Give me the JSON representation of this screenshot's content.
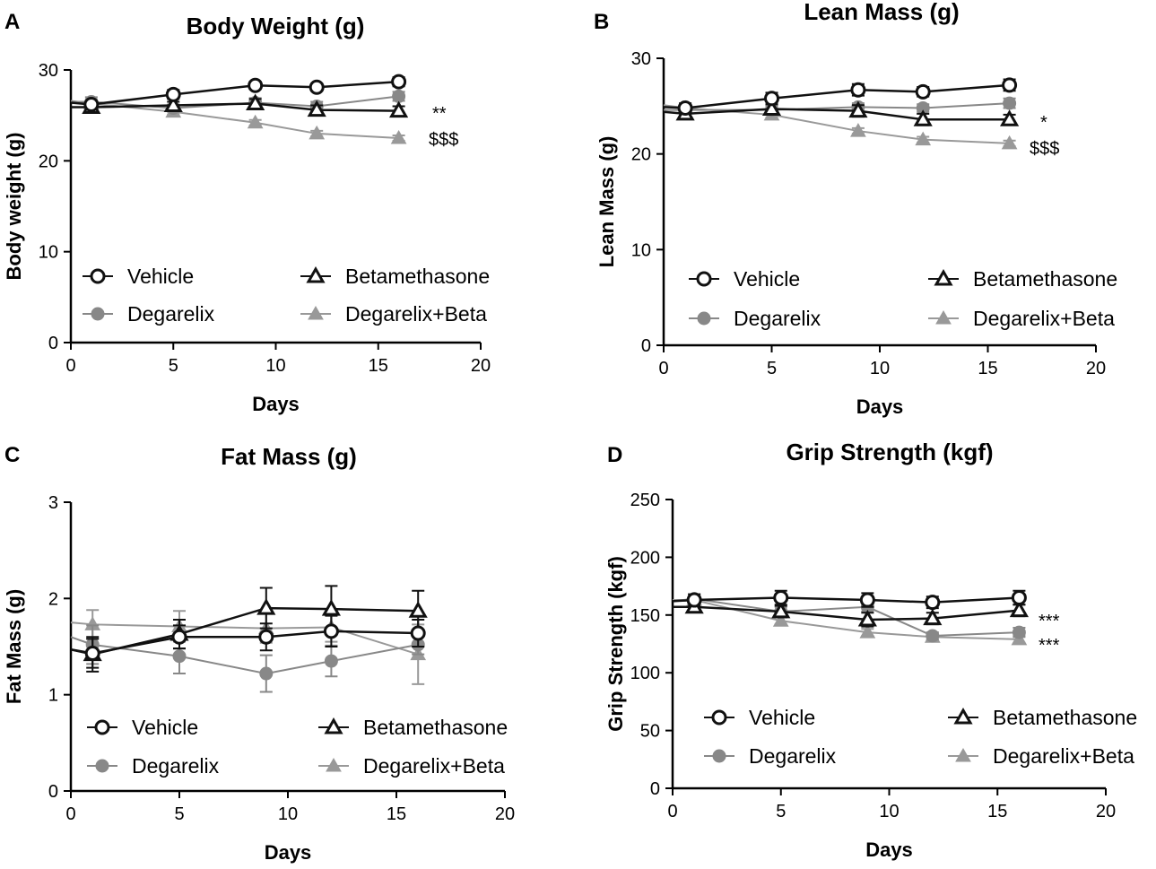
{
  "chart_data": [
    {
      "panel": "A",
      "type": "line",
      "title": "Body Weight (g)",
      "xlabel": "Days",
      "ylabel": "Body weight (g)",
      "xlim": [
        0,
        20
      ],
      "ylim": [
        0,
        30
      ],
      "xticks": [
        0,
        5,
        10,
        15,
        20
      ],
      "yticks": [
        0,
        10,
        20,
        30
      ],
      "x": [
        1,
        5,
        9,
        12,
        16
      ],
      "series": [
        {
          "name": "Vehicle",
          "start": 26.4,
          "values": [
            26.2,
            27.3,
            28.3,
            28.1,
            28.7
          ],
          "err": [
            0.4,
            0.5,
            0.4,
            0.4,
            0.5
          ]
        },
        {
          "name": "Betamethasone",
          "start": 25.9,
          "values": [
            25.9,
            26.1,
            26.3,
            25.6,
            25.5
          ],
          "err": [
            0.4,
            0.4,
            0.5,
            0.5,
            0.5
          ]
        },
        {
          "name": "Degarelix",
          "start": 26.5,
          "values": [
            26.5,
            25.8,
            26.4,
            26.0,
            27.1
          ],
          "err": [
            0.5,
            0.4,
            0.5,
            0.5,
            0.5
          ]
        },
        {
          "name": "Degarelix+Beta",
          "start": 26.6,
          "values": [
            26.3,
            25.4,
            24.2,
            23.0,
            22.5
          ],
          "err": [
            0.3,
            0.3,
            0.3,
            0.3,
            0.3
          ]
        }
      ],
      "annotations": [
        "**",
        "$$$"
      ]
    },
    {
      "panel": "B",
      "type": "line",
      "title": "Lean Mass (g)",
      "xlabel": "Days",
      "ylabel": "Lean Mass (g)",
      "xlim": [
        0,
        20
      ],
      "ylim": [
        0,
        30
      ],
      "xticks": [
        0,
        5,
        10,
        15,
        20
      ],
      "yticks": [
        0,
        10,
        20,
        30
      ],
      "x": [
        1,
        5,
        9,
        12,
        16
      ],
      "series": [
        {
          "name": "Vehicle",
          "start": 24.9,
          "values": [
            24.8,
            25.8,
            26.7,
            26.5,
            27.2
          ],
          "err": [
            0.5,
            0.6,
            0.6,
            0.5,
            0.6
          ]
        },
        {
          "name": "Betamethasone",
          "start": 24.4,
          "values": [
            24.2,
            24.7,
            24.5,
            23.6,
            23.6
          ],
          "err": [
            0.4,
            0.5,
            0.6,
            0.6,
            0.5
          ]
        },
        {
          "name": "Degarelix",
          "start": 24.6,
          "values": [
            24.6,
            24.6,
            24.9,
            24.8,
            25.3
          ],
          "err": [
            0.4,
            0.4,
            0.4,
            0.4,
            0.5
          ]
        },
        {
          "name": "Degarelix+Beta",
          "start": 25.1,
          "values": [
            24.8,
            24.1,
            22.4,
            21.5,
            21.1
          ],
          "err": [
            0.3,
            0.3,
            0.3,
            0.3,
            0.3
          ]
        }
      ],
      "annotations": [
        "*",
        "$$$"
      ]
    },
    {
      "panel": "C",
      "type": "line",
      "title": "Fat Mass (g)",
      "xlabel": "Days",
      "ylabel": "Fat Mass (g)",
      "xlim": [
        0,
        20
      ],
      "ylim": [
        0,
        3
      ],
      "xticks": [
        0,
        5,
        10,
        15,
        20
      ],
      "yticks": [
        0,
        1,
        2,
        3
      ],
      "x": [
        1,
        5,
        9,
        12,
        16
      ],
      "series": [
        {
          "name": "Vehicle",
          "start": 1.47,
          "values": [
            1.43,
            1.6,
            1.6,
            1.66,
            1.64
          ],
          "err": [
            0.15,
            0.12,
            0.14,
            0.16,
            0.14
          ]
        },
        {
          "name": "Betamethasone",
          "start": 1.47,
          "values": [
            1.42,
            1.63,
            1.9,
            1.89,
            1.87
          ],
          "err": [
            0.18,
            0.15,
            0.21,
            0.24,
            0.21
          ]
        },
        {
          "name": "Degarelix",
          "start": 1.6,
          "values": [
            1.52,
            1.4,
            1.22,
            1.35,
            1.52
          ],
          "err": [
            0.2,
            0.18,
            0.19,
            0.16,
            0.1
          ]
        },
        {
          "name": "Degarelix+Beta",
          "start": 1.75,
          "values": [
            1.73,
            1.71,
            1.69,
            1.7,
            1.42
          ],
          "err": [
            0.15,
            0.16,
            0.15,
            0.15,
            0.31
          ]
        }
      ],
      "annotations": []
    },
    {
      "panel": "D",
      "type": "line",
      "title": "Grip Strength (kgf)",
      "xlabel": "Days",
      "ylabel": "Grip Strength (kgf)",
      "xlim": [
        0,
        20
      ],
      "ylim": [
        0,
        250
      ],
      "xticks": [
        0,
        5,
        10,
        15,
        20
      ],
      "yticks": [
        0,
        50,
        100,
        150,
        200,
        250
      ],
      "x": [
        1,
        5,
        9,
        12,
        16
      ],
      "series": [
        {
          "name": "Vehicle",
          "start": 162,
          "values": [
            163,
            165,
            163,
            161,
            165
          ],
          "err": [
            5,
            6,
            6,
            5,
            6
          ]
        },
        {
          "name": "Betamethasone",
          "start": 157,
          "values": [
            157,
            153,
            146,
            147,
            154
          ],
          "err": [
            4,
            5,
            6,
            5,
            5
          ]
        },
        {
          "name": "Degarelix",
          "start": 162,
          "values": [
            164,
            153,
            157,
            132,
            135
          ],
          "err": [
            4,
            4,
            4,
            3,
            4
          ]
        },
        {
          "name": "Degarelix+Beta",
          "start": 163,
          "values": [
            163,
            145,
            135,
            131,
            129
          ],
          "err": [
            3,
            3,
            3,
            3,
            3
          ]
        }
      ],
      "annotations": [
        "***",
        "***"
      ]
    }
  ]
}
